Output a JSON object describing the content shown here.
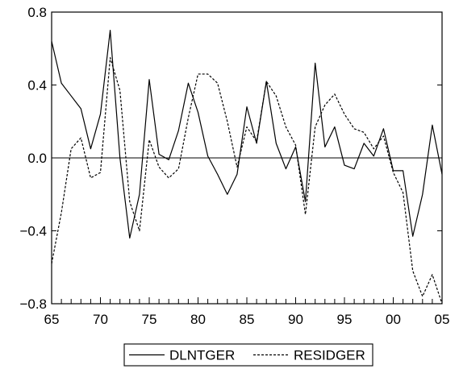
{
  "chart_data": {
    "type": "line",
    "title": "",
    "xlabel": "",
    "ylabel": "",
    "x_start_year": 1965,
    "x_end_year": 2005,
    "xlim": [
      1965,
      2005
    ],
    "ylim": [
      -0.8,
      0.8
    ],
    "grid": false,
    "zero_line": true,
    "legend_position": "bottom-center",
    "x_ticks": [
      {
        "value": 1965,
        "label": "65"
      },
      {
        "value": 1970,
        "label": "70"
      },
      {
        "value": 1975,
        "label": "75"
      },
      {
        "value": 1980,
        "label": "80"
      },
      {
        "value": 1985,
        "label": "85"
      },
      {
        "value": 1990,
        "label": "90"
      },
      {
        "value": 1995,
        "label": "95"
      },
      {
        "value": 2000,
        "label": "00"
      },
      {
        "value": 2005,
        "label": "05"
      }
    ],
    "y_ticks": [
      {
        "value": 0.8,
        "label": "0.8"
      },
      {
        "value": 0.4,
        "label": "0.4"
      },
      {
        "value": 0.0,
        "label": "0.0"
      },
      {
        "value": -0.4,
        "label": "−0.4"
      },
      {
        "value": -0.8,
        "label": "−0.8"
      }
    ],
    "series": [
      {
        "name": "DLNTGER",
        "style": "solid",
        "color": "#000000",
        "values": [
          0.64,
          0.41,
          0.34,
          0.27,
          0.05,
          0.24,
          0.7,
          0.0,
          -0.44,
          -0.2,
          0.43,
          0.02,
          -0.01,
          0.15,
          0.41,
          0.25,
          0.01,
          -0.09,
          -0.2,
          -0.09,
          0.28,
          0.08,
          0.42,
          0.08,
          -0.06,
          0.06,
          -0.24,
          0.52,
          0.06,
          0.17,
          -0.04,
          -0.06,
          0.08,
          0.01,
          0.16,
          -0.07,
          -0.07,
          -0.43,
          -0.2,
          0.18,
          -0.09
        ]
      },
      {
        "name": "RESIDGER",
        "style": "dashed",
        "color": "#000000",
        "values": [
          -0.58,
          -0.3,
          0.05,
          0.11,
          -0.11,
          -0.08,
          0.55,
          0.37,
          -0.24,
          -0.4,
          0.1,
          -0.05,
          -0.11,
          -0.06,
          0.22,
          0.46,
          0.46,
          0.41,
          0.2,
          -0.05,
          0.17,
          0.09,
          0.42,
          0.34,
          0.17,
          0.07,
          -0.31,
          0.17,
          0.29,
          0.35,
          0.24,
          0.16,
          0.14,
          0.05,
          0.12,
          -0.08,
          -0.19,
          -0.62,
          -0.76,
          -0.64,
          -0.8
        ]
      }
    ]
  }
}
